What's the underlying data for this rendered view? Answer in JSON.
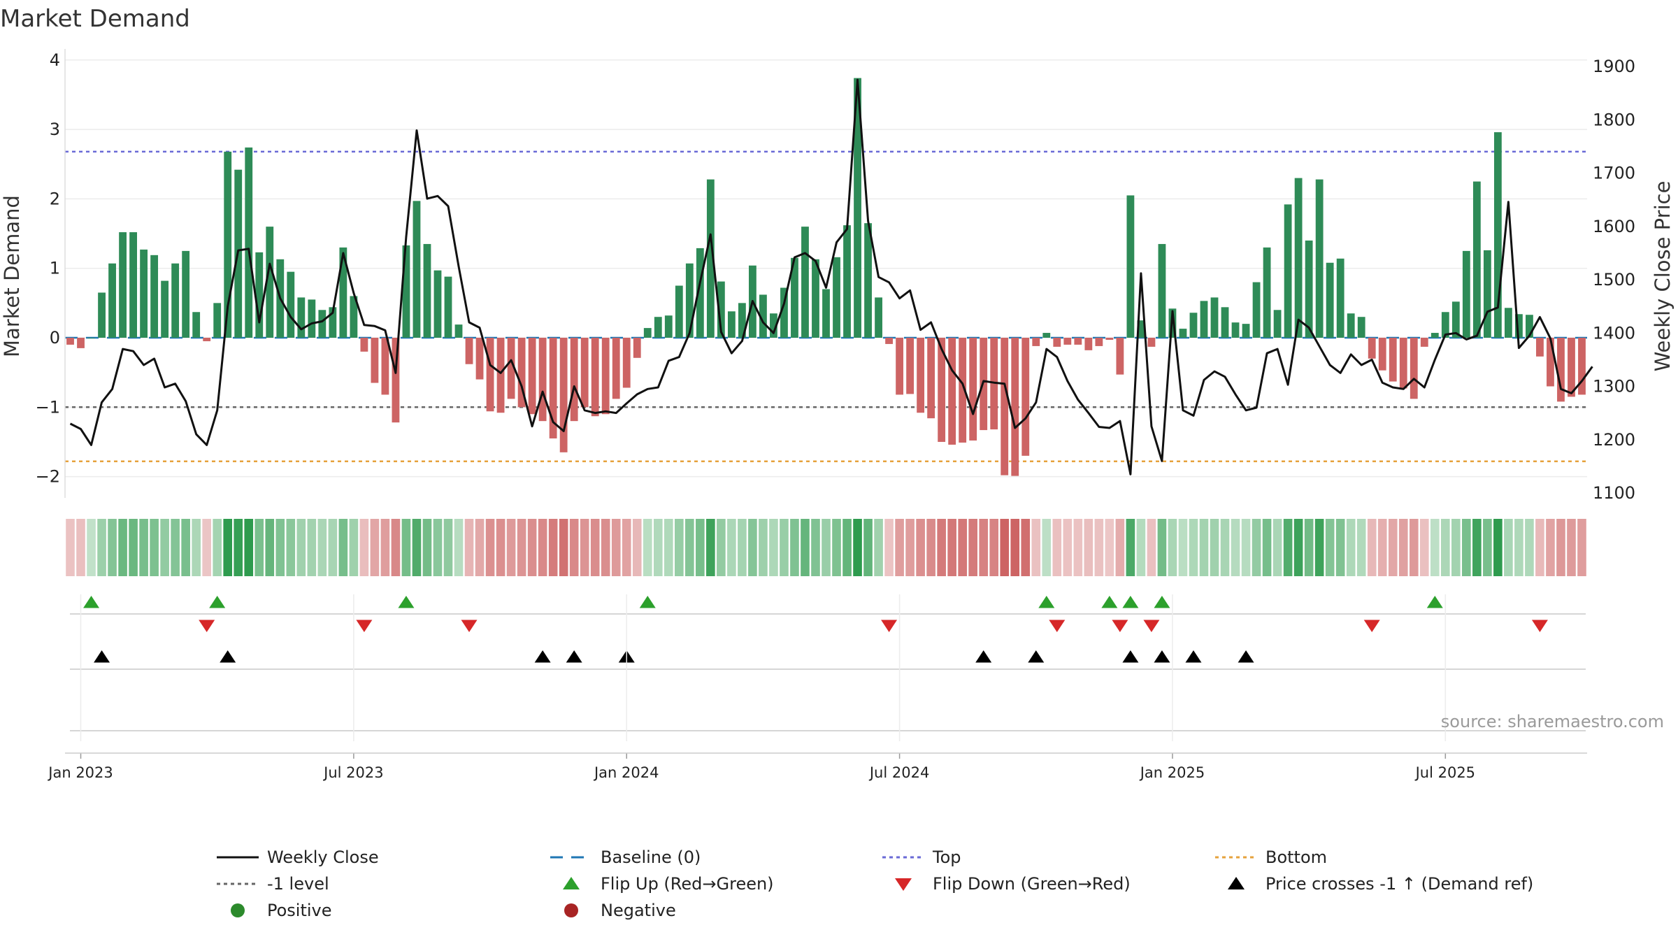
{
  "chart_data": {
    "type": "bar+line",
    "title": "Market Demand",
    "ylabel_left": "Market Demand",
    "ylabel_right": "Weekly Close Price",
    "ylim_left": [
      -2.3,
      4.0
    ],
    "ylim_right": [
      1100,
      1900
    ],
    "left_ticks": [
      "4",
      "3",
      "2",
      "1",
      "0",
      "−1",
      "−2"
    ],
    "right_ticks": [
      "1900",
      "1800",
      "1700",
      "1600",
      "1500",
      "1400",
      "1300",
      "1200",
      "1100"
    ],
    "x_tick_labels": [
      "Jan 2023",
      "Jul 2023",
      "Jan 2024",
      "Jul 2024",
      "Jan 2025",
      "Jul 2025"
    ],
    "reference_lines": {
      "baseline": 0,
      "top": 2.68,
      "minus_one": -1,
      "bottom": -1.78
    },
    "colors": {
      "positive": "#2e8b57",
      "negative": "#cd6464",
      "close": "#111111",
      "baseline": "#1f77b4",
      "top": "#6a6ad6",
      "minus_one": "#666666",
      "bottom": "#e6a23c",
      "flip_up": "#2ca02c",
      "flip_down": "#d62728",
      "cross_marker": "#000000"
    },
    "demand_values": [
      -0.1,
      -0.15,
      0,
      0.65,
      1.07,
      1.52,
      1.52,
      1.27,
      1.19,
      0.82,
      1.07,
      1.25,
      0.37,
      -0.05,
      0.5,
      2.68,
      2.42,
      2.74,
      1.23,
      1.6,
      1.13,
      0.95,
      0.58,
      0.55,
      0.4,
      0.44,
      1.3,
      0.6,
      -0.2,
      -0.65,
      -0.82,
      -1.22,
      1.33,
      1.97,
      1.35,
      0.97,
      0.88,
      0.19,
      -0.38,
      -0.6,
      -1.06,
      -1.08,
      -0.88,
      -1.0,
      -1.1,
      -1.2,
      -1.45,
      -1.65,
      -1.2,
      -1.0,
      -1.13,
      -1.1,
      -0.88,
      -0.72,
      -0.29,
      0.14,
      0.3,
      0.32,
      0.75,
      1.07,
      1.29,
      2.28,
      0.81,
      0.38,
      0.5,
      1.04,
      0.62,
      0.35,
      0.72,
      1.15,
      1.6,
      1.13,
      0.7,
      1.16,
      1.62,
      3.74,
      1.65,
      0.58,
      -0.09,
      -0.82,
      -0.81,
      -1.08,
      -1.16,
      -1.5,
      -1.54,
      -1.51,
      -1.48,
      -1.33,
      -1.32,
      -1.98,
      -1.99,
      -1.7,
      -0.12,
      0.07,
      -0.13,
      -0.1,
      -0.1,
      -0.18,
      -0.12,
      -0.03,
      -0.53,
      2.05,
      0.25,
      -0.13,
      1.35,
      0.42,
      0.13,
      0.36,
      0.53,
      0.58,
      0.44,
      0.22,
      0.2,
      0.8,
      1.3,
      0.4,
      1.92,
      2.3,
      1.4,
      2.28,
      1.08,
      1.14,
      0.35,
      0.3,
      -0.3,
      -0.47,
      -0.63,
      -0.73,
      -0.88,
      -0.13,
      0.07,
      0.37,
      0.52,
      1.25,
      2.25,
      1.26,
      2.96,
      0.43,
      0.34,
      0.33,
      -0.27,
      -0.7,
      -0.92,
      -0.85,
      -0.82
    ],
    "close_values": [
      1230,
      1220,
      1190,
      1270,
      1295,
      1370,
      1366,
      1340,
      1352,
      1298,
      1305,
      1272,
      1210,
      1190,
      1255,
      1450,
      1555,
      1558,
      1420,
      1530,
      1465,
      1430,
      1407,
      1418,
      1422,
      1438,
      1550,
      1475,
      1415,
      1413,
      1405,
      1325,
      1580,
      1780,
      1652,
      1657,
      1638,
      1525,
      1420,
      1410,
      1340,
      1325,
      1349,
      1300,
      1225,
      1290,
      1233,
      1216,
      1300,
      1255,
      1250,
      1253,
      1250,
      1268,
      1285,
      1295,
      1298,
      1348,
      1355,
      1400,
      1495,
      1585,
      1402,
      1362,
      1385,
      1460,
      1420,
      1400,
      1455,
      1542,
      1550,
      1535,
      1485,
      1570,
      1595,
      1875,
      1610,
      1505,
      1495,
      1465,
      1480,
      1406,
      1420,
      1370,
      1330,
      1305,
      1248,
      1310,
      1307,
      1305,
      1222,
      1240,
      1270,
      1370,
      1355,
      1310,
      1275,
      1250,
      1224,
      1222,
      1235,
      1135,
      1512,
      1225,
      1160,
      1441,
      1255,
      1245,
      1312,
      1328,
      1318,
      1285,
      1255,
      1260,
      1362,
      1370,
      1303,
      1425,
      1410,
      1375,
      1340,
      1325,
      1360,
      1340,
      1350,
      1307,
      1298,
      1295,
      1314,
      1298,
      1350,
      1397,
      1400,
      1388,
      1395,
      1440,
      1448,
      1646,
      1372,
      1395,
      1430,
      1390,
      1295,
      1287,
      1310,
      1337
    ],
    "flip_up_weeks": [
      2,
      14,
      32,
      55,
      93,
      99,
      101,
      104,
      130
    ],
    "flip_down_weeks": [
      13,
      28,
      38,
      78,
      94,
      100,
      103,
      124,
      140
    ],
    "price_cross_weeks": [
      3,
      15,
      45,
      48,
      53,
      87,
      92,
      101,
      104,
      107,
      112
    ],
    "source": "source: sharemaestro.com",
    "legend": [
      {
        "key": "close",
        "label": "Weekly Close",
        "style": "line-solid"
      },
      {
        "key": "baseline",
        "label": "Baseline (0)",
        "style": "line-dash"
      },
      {
        "key": "top",
        "label": "Top",
        "style": "line-dot"
      },
      {
        "key": "bottom",
        "label": "Bottom",
        "style": "line-dot"
      },
      {
        "key": "minus_one",
        "label": "-1 level",
        "style": "line-dot"
      },
      {
        "key": "flip_up",
        "label": "Flip Up (Red→Green)",
        "style": "tri-up"
      },
      {
        "key": "flip_down",
        "label": "Flip Down (Green→Red)",
        "style": "tri-down"
      },
      {
        "key": "cross_marker",
        "label": "Price crosses -1 ↑ (Demand ref)",
        "style": "tri-up"
      },
      {
        "key": "positive",
        "label": "Positive",
        "style": "dot-green"
      },
      {
        "key": "negative",
        "label": "Negative",
        "style": "dot-red"
      }
    ]
  }
}
